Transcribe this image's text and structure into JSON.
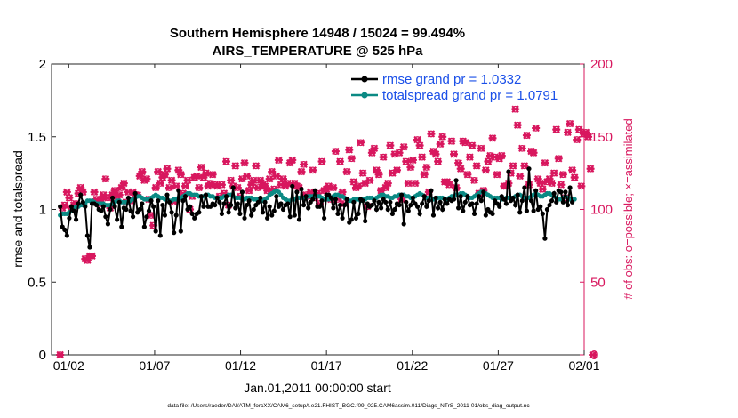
{
  "chart_data": {
    "type": "line",
    "title": "Southern Hemisphere 14948 / 15024 = 99.494%",
    "subtitle": "AIRS_TEMPERATURE @ 525 hPa",
    "ylabel": "rmse and totalspread",
    "ylabel_right": "# of obs: o=possible; ×=assimilated",
    "xlabel": "Jan.01,2011 00:00:00 start",
    "footer": "data file: /Users/raeder/DAI/ATM_forcXX/CAM6_setup/f.e21.FHIST_BGC.f09_025.CAM6assim.011/Diags_NTrS_2011-01/obs_diag_output.nc",
    "xlim": [
      0.5,
      31.5
    ],
    "ylim": [
      0,
      2
    ],
    "ylim_right": [
      0,
      200
    ],
    "y_ticks": [
      "0",
      "0.5",
      "1",
      "1.5",
      "2"
    ],
    "y_ticks_right": [
      "0",
      "50",
      "100",
      "150",
      "200"
    ],
    "x_tick_labels": [
      "01/02",
      "01/07",
      "01/12",
      "01/17",
      "01/22",
      "01/27",
      "02/01"
    ],
    "x_tick_days": [
      1.5,
      6.5,
      11.5,
      16.5,
      21.5,
      26.5,
      31.5
    ],
    "legend": [
      {
        "label": "rmse grand pr = 1.0332",
        "color": "#000000"
      },
      {
        "label": "totalspread grand pr = 1.0791",
        "color": "#0b8a84"
      }
    ],
    "colors": {
      "rmse": "#000000",
      "spread": "#0b8a84",
      "obs": "#d8175e"
    },
    "series": [
      {
        "name": "rmse",
        "values": [
          1.02,
          0.88,
          0.86,
          0.82,
          0.94,
          1.02,
          0.99,
          0.93,
          1.04,
          1.1,
          1.05,
          1.02,
          0.82,
          0.74,
          1.04,
          1.04,
          1.03,
          1.0,
          0.99,
          1.02,
          0.95,
          0.9,
          1.0,
          1.08,
          1.02,
          0.93,
          1.05,
          0.88,
          1.01,
          1.0,
          1.08,
          0.99,
          0.95,
          1.11,
          0.98,
          1.0,
          1.04,
          0.88,
          0.95,
          0.99,
          1.06,
          1.02,
          0.85,
          1.06,
          0.82,
          1.03,
          0.96,
          1.1,
          1.05,
          0.98,
          0.84,
          0.96,
          1.13,
          0.85,
          1.06,
          1.09,
          1.0,
          1.02,
          0.97,
          0.94,
          0.97,
          0.98,
          1.09,
          1.02,
          1.1,
          1.02,
          1.02,
          1.04,
          1.03,
          1.08,
          1.05,
          0.97,
          1.04,
          1.09,
          0.98,
          1.03,
          1.15,
          1.01,
          1.04,
          0.97,
          1.12,
          0.94,
          1.03,
          1.06,
          0.96,
          1.0,
          1.03,
          1.05,
          1.08,
          0.98,
          1.05,
          0.94,
          1.02,
          0.96,
          0.99,
          1.09,
          1.02,
          1.04,
          1.0,
          1.03,
          1.04,
          0.95,
          1.16,
          0.96,
          1.12,
          0.93,
          1.14,
          1.03,
          1.09,
          1.01,
          1.05,
          1.07,
          1.13,
          1.02,
          1.02,
          1.06,
          0.94,
          1.1,
          1.1,
          1.08,
          1.01,
          1.07,
          0.97,
          1.03,
          0.94,
          1.03,
          1.07,
          0.91,
          0.93,
          1.05,
          0.94,
          0.97,
          1.07,
          1.06,
          0.92,
          1.04,
          1.02,
          1.03,
          1.06,
          1.0,
          1.05,
          1.01,
          1.07,
          1.05,
          1.0,
          1.05,
          0.97,
          1.0,
          1.04,
          1.03,
          1.1,
          0.9,
          1.05,
          0.99,
          1.03,
          1.08,
          1.04,
          1.02,
          0.97,
          1.04,
          1.09,
          1.02,
          1.06,
          1.13,
          0.96,
          1.08,
          1.01,
          1.05,
          1.0,
          1.07,
          1.04,
          1.07,
          1.06,
          1.07,
          1.2,
          1.01,
          1.09,
          0.99,
          1.05,
          1.09,
          1.03,
          1.04,
          0.97,
          1.04,
          1.09,
          1.06,
          1.12,
          0.96,
          1.0,
          0.98,
          0.97,
          1.06,
          1.04,
          1.02,
          1.09,
          1.07,
          1.04,
          1.26,
          1.06,
          1.08,
          1.03,
          1.1,
          0.98,
          1.06,
          1.15,
          0.99,
          1.28,
          1.06,
          0.99,
          1.13,
          1.0,
          1.02,
          0.97,
          0.8,
          1.0,
          1.03,
          1.06,
          1.11,
          1.05,
          1.13,
          1.12,
          1.05,
          1.12,
          1.03,
          1.15,
          1.05
        ]
      },
      {
        "name": "totalspread",
        "values": [
          0.96,
          0.97,
          0.97,
          0.97,
          0.98,
          0.99,
          1.0,
          1.02,
          1.02,
          1.03,
          1.03,
          1.04,
          1.06,
          1.06,
          1.06,
          1.05,
          1.04,
          1.04,
          1.04,
          1.04,
          1.03,
          1.03,
          1.03,
          1.04,
          1.05,
          1.06,
          1.06,
          1.05,
          1.05,
          1.05,
          1.05,
          1.06,
          1.07,
          1.08,
          1.09,
          1.09,
          1.08,
          1.07,
          1.07,
          1.07,
          1.08,
          1.09,
          1.1,
          1.09,
          1.08,
          1.08,
          1.07,
          1.07,
          1.06,
          1.06,
          1.07,
          1.07,
          1.08,
          1.08,
          1.09,
          1.1,
          1.11,
          1.11,
          1.1,
          1.1,
          1.1,
          1.09,
          1.09,
          1.09,
          1.1,
          1.1,
          1.09,
          1.09,
          1.08,
          1.08,
          1.08,
          1.08,
          1.09,
          1.09,
          1.1,
          1.1,
          1.09,
          1.08,
          1.08,
          1.08,
          1.07,
          1.07,
          1.08,
          1.08,
          1.08,
          1.07,
          1.07,
          1.07,
          1.06,
          1.06,
          1.07,
          1.08,
          1.1,
          1.11,
          1.12,
          1.13,
          1.12,
          1.1,
          1.08,
          1.07,
          1.06,
          1.06,
          1.07,
          1.07,
          1.08,
          1.08,
          1.08,
          1.08,
          1.08,
          1.09,
          1.09,
          1.09,
          1.09,
          1.09,
          1.09,
          1.08,
          1.07,
          1.07,
          1.07,
          1.08,
          1.09,
          1.1,
          1.1,
          1.09,
          1.09,
          1.08,
          1.07,
          1.06,
          1.06,
          1.07,
          1.07,
          1.07,
          1.06,
          1.07,
          1.07,
          1.08,
          1.08,
          1.08,
          1.07,
          1.08,
          1.09,
          1.1,
          1.1,
          1.09,
          1.09,
          1.08,
          1.08,
          1.09,
          1.09,
          1.1,
          1.1,
          1.1,
          1.09,
          1.09,
          1.08,
          1.08,
          1.09,
          1.1,
          1.11,
          1.1,
          1.09,
          1.08,
          1.08,
          1.07,
          1.07,
          1.07,
          1.08,
          1.08,
          1.08,
          1.07,
          1.07,
          1.08,
          1.09,
          1.09,
          1.1,
          1.1,
          1.11,
          1.11,
          1.1,
          1.09,
          1.08,
          1.08,
          1.09,
          1.1,
          1.11,
          1.12,
          1.12,
          1.11,
          1.1,
          1.09,
          1.08,
          1.08,
          1.08,
          1.08,
          1.07,
          1.07,
          1.08,
          1.08,
          1.08,
          1.08,
          1.09,
          1.1,
          1.1,
          1.09,
          1.08,
          1.08,
          1.08,
          1.09,
          1.1,
          1.11,
          1.1,
          1.09,
          1.09,
          1.1,
          1.11,
          1.11,
          1.1,
          1.09,
          1.08,
          1.07,
          1.07,
          1.08,
          1.09,
          1.08,
          1.07,
          1.07,
          1.07
        ]
      },
      {
        "name": "obs_count",
        "values": [
          0,
          101,
          103,
          112,
          108,
          100,
          103,
          104,
          111,
          115,
          112,
          66,
          65,
          68,
          68,
          112,
          107,
          104,
          107,
          110,
          121,
          108,
          101,
          110,
          113,
          109,
          110,
          115,
          118,
          105,
          112,
          106,
          112,
          110,
          110,
          123,
          126,
          120,
          121,
          107,
          96,
          89,
          115,
          126,
          118,
          122,
          124,
          128,
          115,
          120,
          105,
          116,
          127,
          124,
          111,
          116,
          120,
          100,
          109,
          122,
          123,
          115,
          129,
          122,
          125,
          116,
          118,
          124,
          117,
          116,
          109,
          117,
          111,
          133,
          103,
          120,
          116,
          130,
          115,
          109,
          121,
          132,
          123,
          113,
          117,
          120,
          130,
          115,
          120,
          117,
          116,
          113,
          121,
          126,
          114,
          123,
          134,
          117,
          121,
          116,
          118,
          132,
          134,
          118,
          116,
          115,
          126,
          131,
          110,
          109,
          112,
          127,
          108,
          111,
          104,
          133,
          113,
          114,
          116,
          107,
          115,
          140,
          107,
          133,
          112,
          104,
          126,
          141,
          135,
          119,
          115,
          116,
          146,
          125,
          118,
          102,
          120,
          139,
          142,
          127,
          124,
          113,
          136,
          115,
          118,
          144,
          125,
          138,
          127,
          139,
          107,
          143,
          133,
          118,
          129,
          134,
          118,
          148,
          144,
          136,
          124,
          129,
          112,
          152,
          140,
          138,
          133,
          145,
          150,
          119,
          119,
          117,
          147,
          138,
          115,
          132,
          128,
          147,
          146,
          124,
          136,
          144,
          120,
          130,
          111,
          142,
          113,
          127,
          133,
          137,
          149,
          136,
          124,
          135,
          137,
          116,
          116,
          118,
          125,
          130,
          169,
          158,
          123,
          142,
          130,
          151,
          117,
          140,
          139,
          156,
          121,
          118,
          114,
          132,
          119,
          121,
          118,
          125,
          155,
          135,
          117,
          124,
          108,
          153,
          159,
          127,
          122,
          148,
          155,
          116,
          152,
          153,
          150,
          128,
          0
        ]
      }
    ]
  }
}
